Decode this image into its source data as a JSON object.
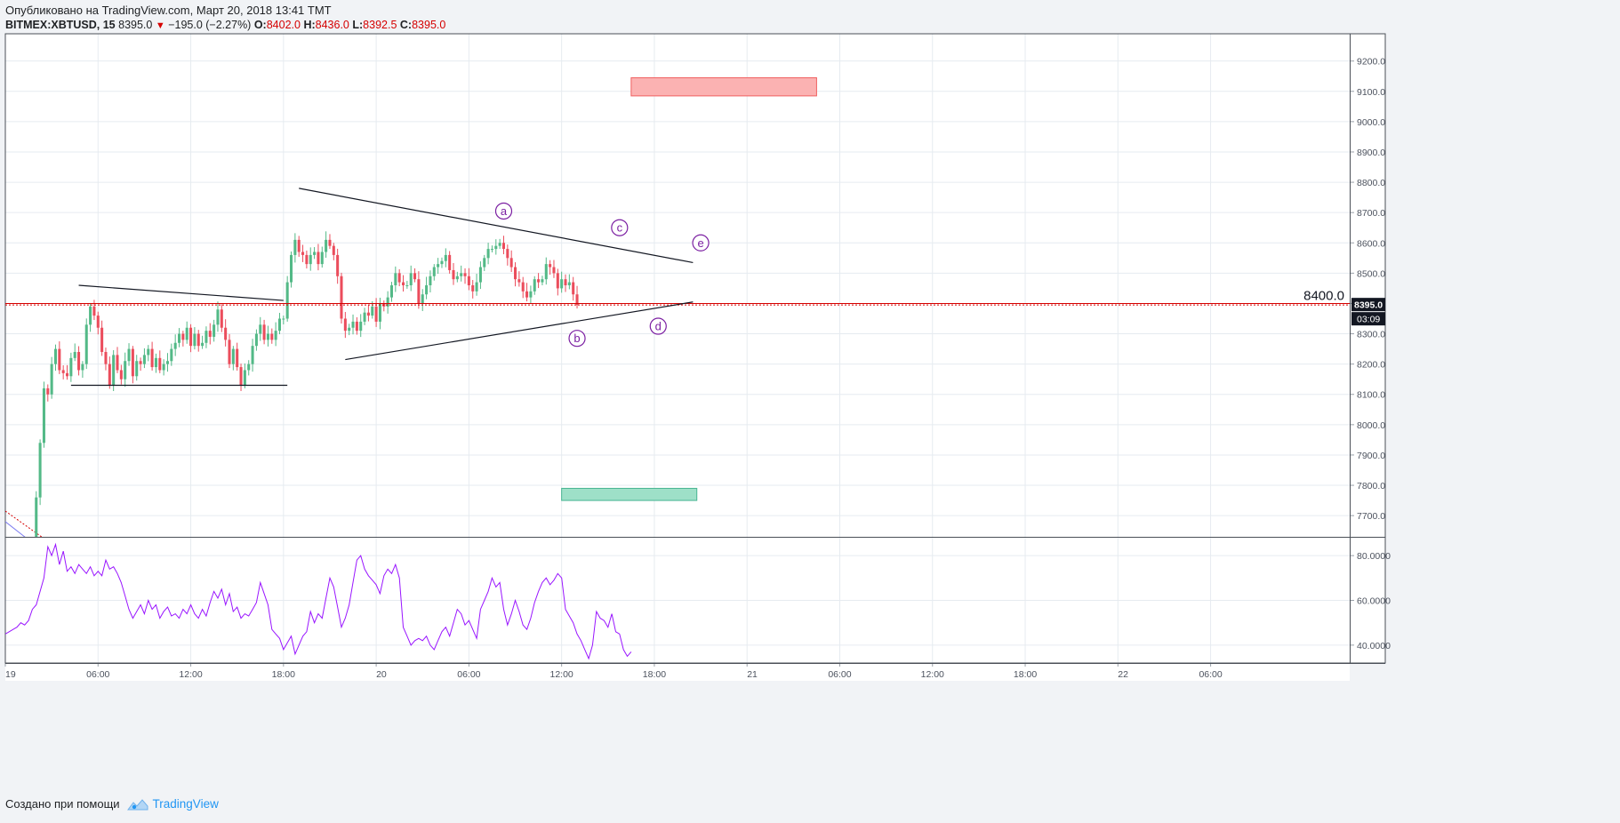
{
  "header": {
    "published": "Опубликовано на TradingView.com, Март 20, 2018 13:41 TMT",
    "symbol": "BITMEX:XBTUSD, 15",
    "last": "8395.0",
    "change": "−195.0 (−2.27%)",
    "o_label": "O:",
    "o_value": "8402.0",
    "h_label": "H:",
    "h_value": "8436.0",
    "l_label": "L:",
    "l_value": "8392.5",
    "c_label": "C:",
    "c_value": "8395.0"
  },
  "footer": {
    "created_with": "Создано при помощи",
    "brand": "TradingView"
  },
  "colors": {
    "up": "#53b987",
    "down": "#eb4d5c",
    "rsi": "#9915ff",
    "grid": "#e6ebf0",
    "price_line": "#d50000",
    "wave_label": "#7b1fa2",
    "target_box_fill": "#fbb2b2",
    "target_box_stroke": "#f06060",
    "support_box_fill": "#9ee0c8",
    "support_box_stroke": "#48b592"
  },
  "chart_data": {
    "type": "candlestick",
    "price_axis": {
      "ylim": [
        7630,
        9290
      ],
      "ticks": [
        "9200.0",
        "9100.0",
        "9000.0",
        "8900.0",
        "8800.0",
        "8700.0",
        "8600.0",
        "8500.0",
        "8400.0",
        "8300.0",
        "8200.0",
        "8100.0",
        "8000.0",
        "7900.0",
        "7800.0",
        "7700.0"
      ]
    },
    "time_axis": {
      "xlim": [
        "2018-03-19 00:00",
        "2018-03-22 15:00"
      ],
      "ticks": [
        {
          "t": "2018-03-19 00:00",
          "label": "19"
        },
        {
          "t": "2018-03-19 06:00",
          "label": "06:00"
        },
        {
          "t": "2018-03-19 12:00",
          "label": "12:00"
        },
        {
          "t": "2018-03-19 18:00",
          "label": "18:00"
        },
        {
          "t": "2018-03-20 00:00",
          "label": "20"
        },
        {
          "t": "2018-03-20 06:00",
          "label": "06:00"
        },
        {
          "t": "2018-03-20 12:00",
          "label": "12:00"
        },
        {
          "t": "2018-03-20 18:00",
          "label": "18:00"
        },
        {
          "t": "2018-03-21 00:00",
          "label": "21"
        },
        {
          "t": "2018-03-21 06:00",
          "label": "06:00"
        },
        {
          "t": "2018-03-21 12:00",
          "label": "12:00"
        },
        {
          "t": "2018-03-21 18:00",
          "label": "18:00"
        },
        {
          "t": "2018-03-22 00:00",
          "label": "22"
        },
        {
          "t": "2018-03-22 06:00",
          "label": "06:00"
        }
      ]
    },
    "last_price": {
      "value": 8395.0,
      "label": "8395.0",
      "countdown": "03:09"
    },
    "horizontal_line": {
      "value": 8400.0,
      "label": "8400.0"
    },
    "series": [
      {
        "name": "BITMEX:XBTUSD, 15",
        "type": "candlestick",
        "first": "2018-03-19 01:45",
        "interval_minutes": 15,
        "close": [
          7590,
          7760,
          7940,
          8120,
          8100,
          8200,
          8250,
          8180,
          8170,
          8160,
          8220,
          8240,
          8180,
          8200,
          8330,
          8390,
          8360,
          8320,
          8240,
          8200,
          8130,
          8230,
          8180,
          8150,
          8210,
          8250,
          8160,
          8210,
          8200,
          8230,
          8250,
          8190,
          8220,
          8180,
          8200,
          8210,
          8250,
          8270,
          8300,
          8280,
          8320,
          8260,
          8300,
          8260,
          8270,
          8310,
          8290,
          8330,
          8380,
          8320,
          8280,
          8200,
          8250,
          8190,
          8130,
          8180,
          8200,
          8260,
          8300,
          8330,
          8280,
          8300,
          8280,
          8310,
          8350,
          8350,
          8470,
          8560,
          8610,
          8570,
          8560,
          8530,
          8560,
          8570,
          8530,
          8570,
          8610,
          8590,
          8560,
          8490,
          8350,
          8310,
          8320,
          8340,
          8310,
          8340,
          8370,
          8360,
          8390,
          8340,
          8400,
          8390,
          8420,
          8460,
          8500,
          8470,
          8460,
          8460,
          8500,
          8480,
          8400,
          8430,
          8460,
          8490,
          8520,
          8530,
          8540,
          8560,
          8510,
          8480,
          8490,
          8500,
          8490,
          8460,
          8440,
          8470,
          8520,
          8550,
          8580,
          8580,
          8590,
          8600,
          8580,
          8550,
          8520,
          8480,
          8470,
          8440,
          8420,
          8440,
          8480,
          8470,
          8480,
          8530,
          8520,
          8500,
          8450,
          8480,
          8460,
          8470,
          8430,
          8395
        ]
      },
      {
        "name": "RSI",
        "type": "line",
        "ylim": [
          32,
          88
        ],
        "ticks": [
          "80.0000",
          "60.0000",
          "40.0000"
        ],
        "first": "2018-03-19 00:00",
        "interval_minutes": 15,
        "values": [
          45,
          46,
          47,
          48,
          50,
          49,
          51,
          56,
          58,
          64,
          70,
          84,
          80,
          85,
          76,
          82,
          73,
          75,
          72,
          76,
          74,
          72,
          75,
          71,
          73,
          71,
          78,
          74,
          75,
          72,
          68,
          62,
          56,
          52,
          55,
          58,
          54,
          60,
          56,
          58,
          52,
          55,
          57,
          53,
          54,
          52,
          56,
          54,
          58,
          54,
          52,
          56,
          53,
          59,
          64,
          61,
          65,
          58,
          63,
          55,
          57,
          52,
          54,
          53,
          56,
          59,
          68,
          63,
          58,
          47,
          45,
          43,
          38,
          41,
          44,
          36,
          40,
          44,
          46,
          55,
          50,
          54,
          52,
          61,
          70,
          66,
          57,
          48,
          52,
          58,
          68,
          78,
          80,
          74,
          71,
          69,
          67,
          63,
          71,
          74,
          72,
          76,
          70,
          48,
          44,
          40,
          42,
          43,
          42,
          44,
          40,
          38,
          42,
          46,
          48,
          44,
          50,
          56,
          54,
          49,
          51,
          47,
          43,
          56,
          60,
          64,
          70,
          66,
          68,
          56,
          49,
          54,
          60,
          55,
          49,
          47,
          52,
          59,
          64,
          68,
          70,
          67,
          69,
          72,
          70,
          56,
          53,
          50,
          45,
          42,
          38,
          34,
          40,
          55,
          52,
          51,
          48,
          54,
          46,
          45,
          38,
          35,
          37
        ]
      }
    ],
    "annotations": [
      {
        "type": "trendline",
        "from": [
          "2018-03-19 04:45",
          8460
        ],
        "to": [
          "2018-03-19 18:00",
          8410
        ]
      },
      {
        "type": "trendline",
        "from": [
          "2018-03-19 04:15",
          8130
        ],
        "to": [
          "2018-03-19 18:15",
          8130
        ]
      },
      {
        "type": "trendline",
        "from": [
          "2018-03-19 19:00",
          8780
        ],
        "to": [
          "2018-03-20 20:30",
          8535
        ]
      },
      {
        "type": "trendline",
        "from": [
          "2018-03-19 22:00",
          8215
        ],
        "to": [
          "2018-03-20 20:30",
          8405
        ]
      },
      {
        "type": "rectangle",
        "name": "target zone",
        "from": [
          "2018-03-20 16:30",
          9145
        ],
        "to": [
          "2018-03-21 04:30",
          9085
        ]
      },
      {
        "type": "rectangle",
        "name": "support zone",
        "from": [
          "2018-03-20 12:00",
          7790
        ],
        "to": [
          "2018-03-20 20:45",
          7750
        ]
      },
      {
        "type": "wave_label",
        "text": "a",
        "at": [
          "2018-03-20 08:15",
          8705
        ]
      },
      {
        "type": "wave_label",
        "text": "b",
        "at": [
          "2018-03-20 13:00",
          8285
        ]
      },
      {
        "type": "wave_label",
        "text": "c",
        "at": [
          "2018-03-20 15:45",
          8650
        ]
      },
      {
        "type": "wave_label",
        "text": "d",
        "at": [
          "2018-03-20 18:15",
          8325
        ]
      },
      {
        "type": "wave_label",
        "text": "e",
        "at": [
          "2018-03-20 21:00",
          8600
        ]
      }
    ]
  }
}
